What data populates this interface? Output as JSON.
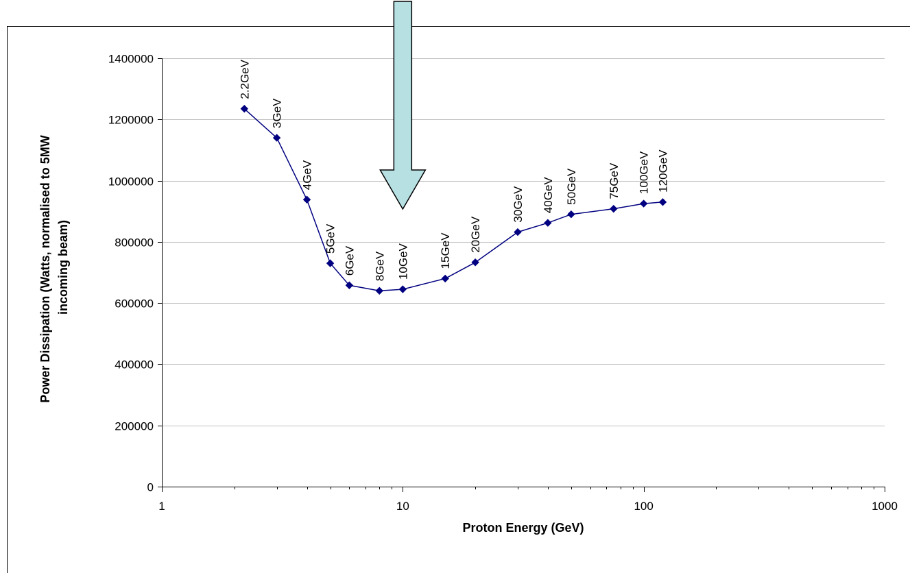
{
  "chart_data": {
    "type": "scatter",
    "title": "",
    "xlabel": "Proton Energy (GeV)",
    "ylabel_lines": [
      "Power Dissipation (Watts, normalised to 5MW",
      "incoming beam)"
    ],
    "x_scale": "log",
    "xlim": [
      1,
      1000
    ],
    "ylim": [
      0,
      1400000
    ],
    "x_ticks": [
      1,
      10,
      100,
      1000
    ],
    "y_ticks": [
      0,
      200000,
      400000,
      600000,
      800000,
      1000000,
      1200000,
      1400000
    ],
    "grid": "horizontal",
    "legend": "none",
    "series": [
      {
        "color": "#000080",
        "marker": "diamond",
        "points": [
          {
            "x": 2.2,
            "y": 1235000,
            "label": "2.2GeV"
          },
          {
            "x": 3,
            "y": 1140000,
            "label": "3GeV"
          },
          {
            "x": 4,
            "y": 938000,
            "label": "4GeV"
          },
          {
            "x": 5,
            "y": 730000,
            "label": "5GeV"
          },
          {
            "x": 6,
            "y": 658000,
            "label": "6GeV"
          },
          {
            "x": 8,
            "y": 640000,
            "label": "8GeV"
          },
          {
            "x": 10,
            "y": 645000,
            "label": "10GeV"
          },
          {
            "x": 15,
            "y": 680000,
            "label": "15GeV"
          },
          {
            "x": 20,
            "y": 733000,
            "label": "20GeV"
          },
          {
            "x": 30,
            "y": 832000,
            "label": "30GeV"
          },
          {
            "x": 40,
            "y": 862000,
            "label": "40GeV"
          },
          {
            "x": 50,
            "y": 890000,
            "label": "50GeV"
          },
          {
            "x": 75,
            "y": 908000,
            "label": "75GeV"
          },
          {
            "x": 100,
            "y": 925000,
            "label": "100GeV"
          },
          {
            "x": 120,
            "y": 930000,
            "label": "120GeV"
          }
        ]
      }
    ],
    "annotation": {
      "type": "arrow",
      "points_to_x": 10,
      "fill": "#b7e0e3",
      "stroke": "#000000"
    }
  }
}
